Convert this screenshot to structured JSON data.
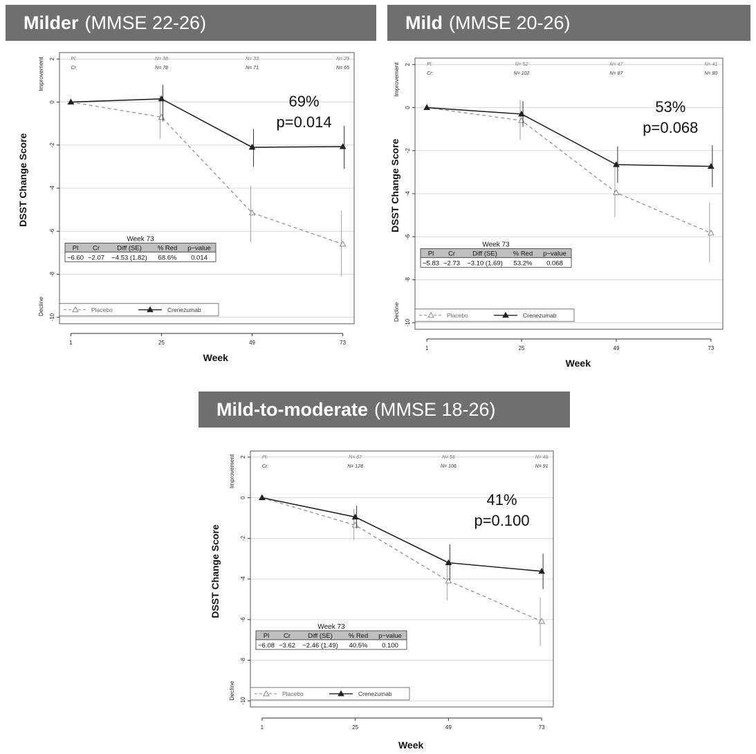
{
  "colors": {
    "banner_bg": "#6f6f6f",
    "banner_text": "#ffffff",
    "placebo_line": "#8a8a8a",
    "crenezumab_line": "#222222",
    "grid": "#d9d9d9",
    "table_header_bg": "#bfbfbf"
  },
  "panels": [
    {
      "banner_bold": "Milder",
      "banner_rest": "(MMSE 22-26)",
      "pct": "69%",
      "pval": "p=0.014",
      "n_rows": {
        "pl_label": "Pl:",
        "cr_label": "Cr:",
        "pl": [
          "",
          "N= 38",
          "N= 33",
          "N= 29"
        ],
        "cr": [
          "",
          "N= 78",
          "N= 71",
          "N= 65"
        ]
      },
      "table": {
        "title": "Week 73",
        "headers": [
          "Pl",
          "Cr",
          "Diff (SE)",
          "% Red",
          "p−value"
        ],
        "values": [
          "−6.60",
          "−2.07",
          "−4.53 (1.82)",
          "68.6%",
          "0.014"
        ]
      }
    },
    {
      "banner_bold": "Mild",
      "banner_rest": "(MMSE 20-26)",
      "pct": "53%",
      "pval": "p=0.068",
      "n_rows": {
        "pl_label": "Pl:",
        "cr_label": "Cr:",
        "pl": [
          "",
          "N= 52",
          "N= 47",
          "N= 41"
        ],
        "cr": [
          "",
          "N= 102",
          "N= 87",
          "N= 80"
        ]
      },
      "table": {
        "title": "Week 73",
        "headers": [
          "Pl",
          "Cr",
          "Diff (SE)",
          "% Red",
          "p−value"
        ],
        "values": [
          "−5.83",
          "−2.73",
          "−3.10 (1.69)",
          "53.2%",
          "0.068"
        ]
      }
    },
    {
      "banner_bold": "Mild-to-moderate",
      "banner_rest": "(MMSE 18-26)",
      "pct": "41%",
      "pval": "p=0.100",
      "n_rows": {
        "pl_label": "Pl:",
        "cr_label": "Cr:",
        "pl": [
          "",
          "N= 67",
          "N= 58",
          "N= 48"
        ],
        "cr": [
          "",
          "N= 128",
          "N= 106",
          "N= 91"
        ]
      },
      "table": {
        "title": "Week 73",
        "headers": [
          "Pl",
          "Cr",
          "Diff (SE)",
          "% Red",
          "p−value"
        ],
        "values": [
          "−6.08",
          "−3.62",
          "−2.46 (1.49)",
          "40.5%",
          "0.100"
        ]
      }
    }
  ],
  "chart_data": [
    {
      "type": "line",
      "xlabel": "Week",
      "ylabel": "DSST Change Score",
      "y_top_label": "Improvement",
      "y_bottom_label": "Decline",
      "x": [
        1,
        25,
        49,
        73
      ],
      "x_tick_labels": [
        "1",
        "25",
        "49",
        "73"
      ],
      "y_ticks": [
        2,
        0,
        -2,
        -4,
        -6,
        -8,
        -10
      ],
      "ylim": [
        -10.3,
        2.3
      ],
      "grid": true,
      "legend": "bottom-left",
      "series": [
        {
          "name": "Placebo",
          "values": [
            0,
            -0.7,
            -5.15,
            -6.6
          ],
          "err_low": [
            0,
            -1.7,
            -6.5,
            -8.1
          ],
          "err_high": [
            0,
            0.3,
            -3.9,
            -5.05
          ]
        },
        {
          "name": "Crenezumab",
          "values": [
            0,
            0.15,
            -2.1,
            -2.07
          ],
          "err_low": [
            0,
            -0.9,
            -3.0,
            -3.1
          ],
          "err_high": [
            0,
            0.8,
            -1.25,
            -1.1
          ]
        }
      ]
    },
    {
      "type": "line",
      "xlabel": "Week",
      "ylabel": "DSST Change Score",
      "y_top_label": "Improvement",
      "y_bottom_label": "Decline",
      "x": [
        1,
        25,
        49,
        73
      ],
      "x_tick_labels": [
        "1",
        "25",
        "49",
        "73"
      ],
      "y_ticks": [
        2,
        0,
        -2,
        -4,
        -6,
        -8,
        -10
      ],
      "ylim": [
        -10.3,
        2.3
      ],
      "grid": true,
      "legend": "bottom-left",
      "series": [
        {
          "name": "Placebo",
          "values": [
            0,
            -0.6,
            -3.95,
            -5.83
          ],
          "err_low": [
            0,
            -1.5,
            -5.1,
            -7.2
          ],
          "err_high": [
            0,
            0.35,
            -2.8,
            -4.4
          ]
        },
        {
          "name": "Crenezumab",
          "values": [
            0,
            -0.3,
            -2.65,
            -2.73
          ],
          "err_low": [
            0,
            -0.9,
            -3.5,
            -3.7
          ],
          "err_high": [
            0,
            0.3,
            -1.8,
            -1.75
          ]
        }
      ]
    },
    {
      "type": "line",
      "xlabel": "Week",
      "ylabel": "DSST Change Score",
      "y_top_label": "Improvement",
      "y_bottom_label": "Decline",
      "x": [
        1,
        25,
        49,
        73
      ],
      "x_tick_labels": [
        "1",
        "25",
        "49",
        "73"
      ],
      "y_ticks": [
        2,
        0,
        -2,
        -4,
        -6,
        -8,
        -10
      ],
      "ylim": [
        -10.3,
        2.3
      ],
      "grid": true,
      "legend": "bottom-left",
      "series": [
        {
          "name": "Placebo",
          "values": [
            0,
            -1.35,
            -4.1,
            -6.08
          ],
          "err_low": [
            0,
            -2.1,
            -5.05,
            -7.3
          ],
          "err_high": [
            0,
            -0.55,
            -3.2,
            -4.9
          ]
        },
        {
          "name": "Crenezumab",
          "values": [
            0,
            -0.95,
            -3.2,
            -3.62
          ],
          "err_low": [
            0,
            -1.5,
            -4.05,
            -4.5
          ],
          "err_high": [
            0,
            -0.4,
            -2.3,
            -2.75
          ]
        }
      ]
    }
  ]
}
